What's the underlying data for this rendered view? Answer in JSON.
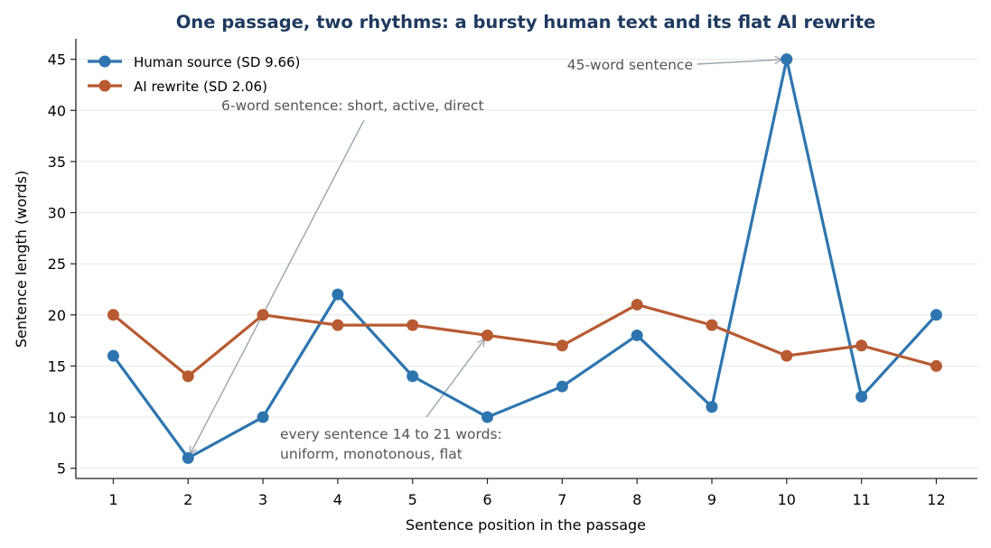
{
  "chart_data": {
    "type": "line",
    "title": "One passage, two rhythms: a bursty human text and its flat AI rewrite",
    "xlabel": "Sentence position in the passage",
    "ylabel": "Sentence length (words)",
    "x": [
      1,
      2,
      3,
      4,
      5,
      6,
      7,
      8,
      9,
      10,
      11,
      12
    ],
    "ylim": [
      4,
      47
    ],
    "xlim": [
      0.5,
      12.55
    ],
    "yticks": [
      5,
      10,
      15,
      20,
      25,
      30,
      35,
      40,
      45
    ],
    "grid": "horizontal",
    "legend_position": "top-left",
    "series": [
      {
        "name": "Human source (SD 9.66)",
        "color": "#2e75b0",
        "values": [
          16,
          6,
          10,
          22,
          14,
          10,
          13,
          18,
          11,
          45,
          12,
          20
        ]
      },
      {
        "name": "AI rewrite (SD 2.06)",
        "color": "#b85a32",
        "values": [
          20,
          14,
          20,
          19,
          19,
          18,
          17,
          21,
          19,
          16,
          17,
          15
        ]
      }
    ],
    "annotations": [
      {
        "lines": [
          "45-word sentence"
        ],
        "target": [
          10,
          45
        ]
      },
      {
        "lines": [
          "6-word sentence: short, active, direct"
        ],
        "target": [
          2,
          6
        ]
      },
      {
        "lines": [
          "every sentence 14 to 21 words:",
          "uniform, monotonous, flat"
        ],
        "target": [
          6,
          18
        ]
      }
    ],
    "colors": {
      "title": "#1f3a5f",
      "grid": "#e6e6e6",
      "annotation_arrow": "#9aa3ad",
      "annotation_text": "#555555"
    }
  }
}
